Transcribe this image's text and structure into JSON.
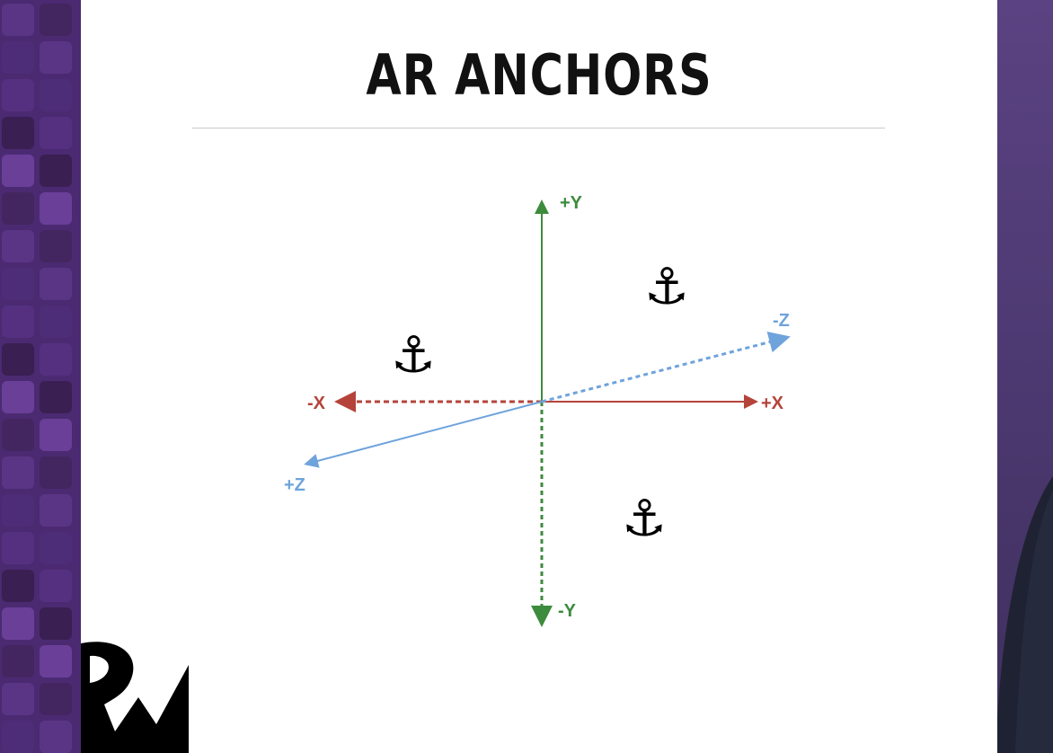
{
  "slide": {
    "title": "AR ANCHORS"
  },
  "axes": {
    "plus_y": "+Y",
    "minus_y": "-Y",
    "plus_x": "+X",
    "minus_x": "-X",
    "plus_z": "+Z",
    "minus_z": "-Z"
  },
  "icons": {
    "anchor_glyph": "⚓",
    "anchor_count": 3
  },
  "colors": {
    "y_axis": "#3d8b3d",
    "x_axis": "#b5433a",
    "z_axis": "#6fa3dc",
    "background_purple": "#4b2a72"
  }
}
